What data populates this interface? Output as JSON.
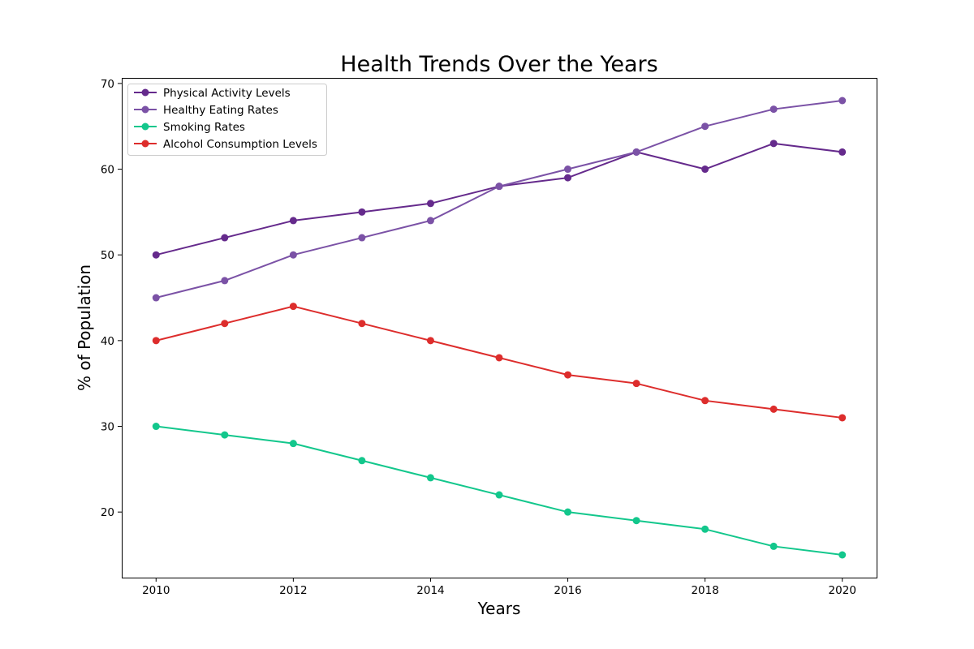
{
  "chart_data": {
    "type": "line",
    "title": "Health Trends Over the Years",
    "xlabel": "Years",
    "ylabel": "% of Population",
    "x": [
      2010,
      2011,
      2012,
      2013,
      2014,
      2015,
      2016,
      2017,
      2018,
      2019,
      2020
    ],
    "xlim": [
      2009.5,
      2020.5
    ],
    "ylim": [
      12.35,
      70.65
    ],
    "x_ticks": [
      "2010",
      "2012",
      "2014",
      "2016",
      "2018",
      "2020"
    ],
    "y_ticks": [
      "20",
      "30",
      "40",
      "50",
      "60",
      "70"
    ],
    "grid": false,
    "legend_position": "top-left",
    "series": [
      {
        "name": "Physical Activity Levels",
        "color": "#652a8c",
        "marker": "circle",
        "values": [
          50,
          52,
          54,
          55,
          56,
          58,
          59,
          62,
          60,
          63,
          62
        ]
      },
      {
        "name": "Healthy Eating Rates",
        "color": "#7b52a6",
        "marker": "circle",
        "values": [
          45,
          47,
          50,
          52,
          54,
          58,
          60,
          62,
          65,
          67,
          68
        ]
      },
      {
        "name": "Smoking Rates",
        "color": "#13c78c",
        "marker": "circle",
        "values": [
          30,
          29,
          28,
          26,
          24,
          22,
          20,
          19,
          18,
          16,
          15
        ]
      },
      {
        "name": "Alcohol Consumption Levels",
        "color": "#dd2d2c",
        "marker": "circle",
        "values": [
          40,
          42,
          44,
          42,
          40,
          38,
          36,
          35,
          33,
          32,
          31
        ]
      }
    ]
  }
}
